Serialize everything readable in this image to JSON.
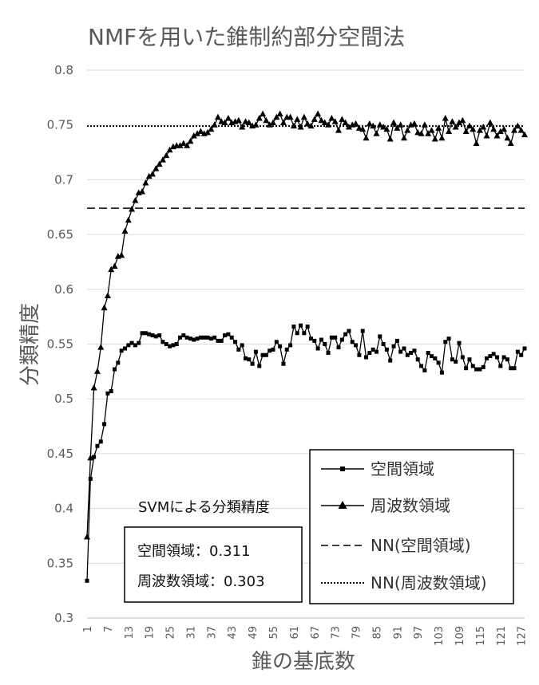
{
  "chart_data": {
    "type": "line",
    "title": "NMFを用いた錐制約部分空間法",
    "xlabel": "錐の基底数",
    "ylabel": "分類精度",
    "ylim": [
      0.3,
      0.8
    ],
    "yticks": [
      "0.3",
      "0.35",
      "0.4",
      "0.45",
      "0.5",
      "0.55",
      "0.6",
      "0.65",
      "0.7",
      "0.75",
      "0.8"
    ],
    "x_first": 1,
    "x_last": 128,
    "xticks": [
      "1",
      "7",
      "13",
      "19",
      "25",
      "31",
      "37",
      "43",
      "49",
      "55",
      "61",
      "67",
      "73",
      "79",
      "85",
      "91",
      "97",
      "103",
      "109",
      "115",
      "121",
      "127"
    ],
    "grid": "horizontal",
    "series": [
      {
        "name": "空間領域",
        "marker": "square",
        "values": [
          0.334,
          0.427,
          0.447,
          0.457,
          0.461,
          0.477,
          0.505,
          0.507,
          0.527,
          0.533,
          0.544,
          0.546,
          0.549,
          0.551,
          0.549,
          0.551,
          0.56,
          0.56,
          0.559,
          0.558,
          0.557,
          0.558,
          0.552,
          0.55,
          0.548,
          0.549,
          0.55,
          0.556,
          0.558,
          0.556,
          0.555,
          0.554,
          0.555,
          0.556,
          0.556,
          0.556,
          0.555,
          0.556,
          0.553,
          0.553,
          0.558,
          0.559,
          0.556,
          0.552,
          0.545,
          0.549,
          0.537,
          0.536,
          0.532,
          0.543,
          0.53,
          0.54,
          0.54,
          0.544,
          0.545,
          0.552,
          0.548,
          0.532,
          0.545,
          0.549,
          0.566,
          0.56,
          0.567,
          0.56,
          0.566,
          0.555,
          0.553,
          0.546,
          0.554,
          0.55,
          0.542,
          0.556,
          0.556,
          0.547,
          0.554,
          0.559,
          0.562,
          0.552,
          0.549,
          0.54,
          0.562,
          0.538,
          0.542,
          0.545,
          0.543,
          0.557,
          0.55,
          0.545,
          0.535,
          0.548,
          0.553,
          0.543,
          0.546,
          0.54,
          0.542,
          0.544,
          0.536,
          0.53,
          0.526,
          0.542,
          0.539,
          0.537,
          0.533,
          0.524,
          0.552,
          0.555,
          0.536,
          0.534,
          0.551,
          0.538,
          0.528,
          0.536,
          0.53,
          0.527,
          0.527,
          0.529,
          0.537,
          0.539,
          0.541,
          0.538,
          0.53,
          0.538,
          0.536,
          0.528,
          0.528,
          0.543,
          0.54,
          0.546
        ]
      },
      {
        "name": "周波数領域",
        "marker": "triangle",
        "values": [
          0.374,
          0.446,
          0.51,
          0.525,
          0.547,
          0.583,
          0.594,
          0.618,
          0.621,
          0.63,
          0.631,
          0.653,
          0.663,
          0.673,
          0.681,
          0.688,
          0.689,
          0.697,
          0.703,
          0.705,
          0.71,
          0.714,
          0.718,
          0.722,
          0.727,
          0.73,
          0.731,
          0.731,
          0.733,
          0.731,
          0.735,
          0.74,
          0.742,
          0.744,
          0.742,
          0.743,
          0.746,
          0.75,
          0.757,
          0.753,
          0.752,
          0.756,
          0.752,
          0.753,
          0.754,
          0.748,
          0.753,
          0.752,
          0.749,
          0.75,
          0.756,
          0.76,
          0.754,
          0.75,
          0.752,
          0.757,
          0.76,
          0.752,
          0.757,
          0.757,
          0.749,
          0.755,
          0.748,
          0.757,
          0.751,
          0.749,
          0.755,
          0.76,
          0.754,
          0.752,
          0.75,
          0.756,
          0.753,
          0.745,
          0.755,
          0.752,
          0.748,
          0.75,
          0.751,
          0.747,
          0.746,
          0.738,
          0.751,
          0.749,
          0.742,
          0.75,
          0.748,
          0.746,
          0.737,
          0.752,
          0.747,
          0.75,
          0.738,
          0.745,
          0.75,
          0.751,
          0.743,
          0.742,
          0.75,
          0.742,
          0.745,
          0.737,
          0.747,
          0.738,
          0.756,
          0.744,
          0.753,
          0.748,
          0.752,
          0.754,
          0.744,
          0.749,
          0.746,
          0.733,
          0.745,
          0.748,
          0.74,
          0.752,
          0.746,
          0.74,
          0.744,
          0.746,
          0.738,
          0.733,
          0.745,
          0.749,
          0.745,
          0.741
        ]
      }
    ],
    "reference_lines": [
      {
        "name": "NN(空間領域)",
        "value": 0.674,
        "style": "dashed"
      },
      {
        "name": "NN(周波数領域)",
        "value": 0.749,
        "style": "dotted"
      }
    ],
    "legend_position": "bottom-right",
    "annotation": {
      "heading": "SVMによる分類精度",
      "rows": [
        {
          "label": "空間領域：",
          "value": "0.311"
        },
        {
          "label": "周波数領域：",
          "value": "0.303"
        }
      ]
    }
  },
  "colors": {
    "text": "#595959",
    "grid": "#d9d9d9",
    "line": "#000000",
    "background": "#ffffff"
  }
}
